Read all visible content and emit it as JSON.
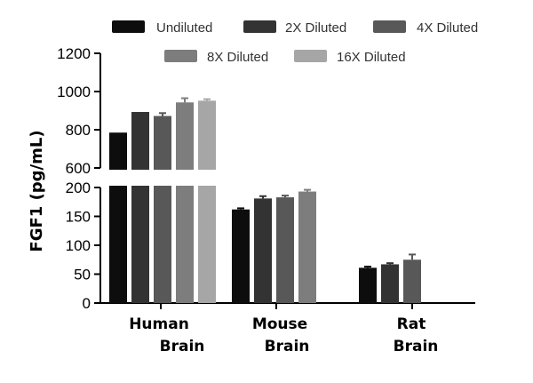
{
  "chart_data": {
    "type": "bar",
    "ylabel": "FGF1 (pg/mL)",
    "categories": [
      [
        "Human",
        "Brain"
      ],
      [
        "Mouse",
        "Brain"
      ],
      [
        "Rat",
        "Brain"
      ]
    ],
    "y_axis_broken": true,
    "ylim_lower": [
      0,
      200
    ],
    "ylim_upper": [
      600,
      1200
    ],
    "yticks_lower": [
      "0",
      "50",
      "100",
      "150",
      "200"
    ],
    "yticks_upper": [
      "600",
      "800",
      "1000",
      "1200"
    ],
    "legend_position": "top",
    "series": [
      {
        "name": "Undiluted",
        "color": "#0d0d0d",
        "values": [
          785,
          162,
          61
        ],
        "errors": [
          0,
          2,
          2
        ]
      },
      {
        "name": "2X Diluted",
        "color": "#333333",
        "values": [
          893,
          181,
          67
        ],
        "errors": [
          0,
          4,
          2
        ]
      },
      {
        "name": "4X Diluted",
        "color": "#585858",
        "values": [
          872,
          183,
          75
        ],
        "errors": [
          15,
          3,
          9
        ]
      },
      {
        "name": "8X Diluted",
        "color": "#7d7d7d",
        "values": [
          943,
          193,
          null
        ],
        "errors": [
          22,
          3,
          0
        ]
      },
      {
        "name": "16X Diluted",
        "color": "#a6a6a6",
        "values": [
          952,
          null,
          null
        ],
        "errors": [
          8,
          0,
          0
        ]
      }
    ]
  }
}
